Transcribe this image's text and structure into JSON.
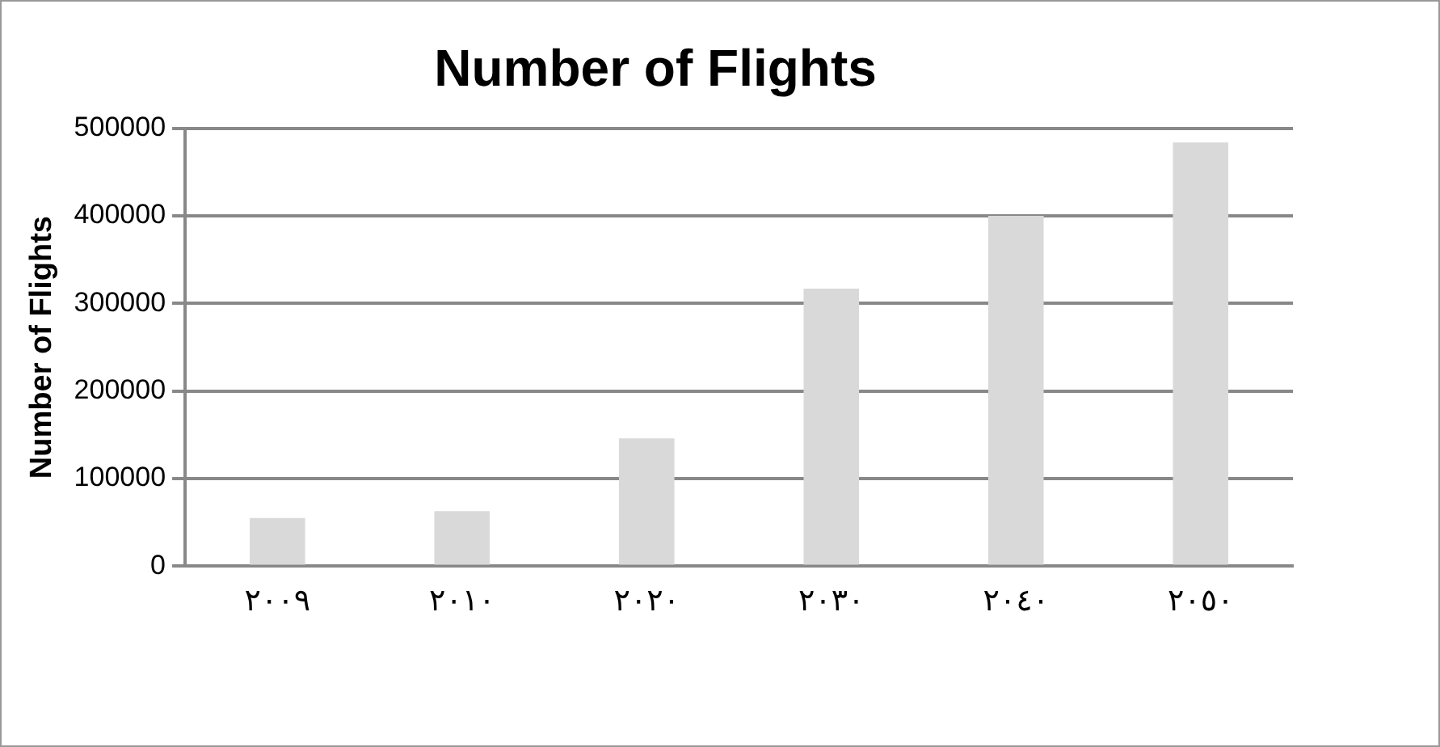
{
  "chart_data": {
    "type": "bar",
    "title": "Number of Flights",
    "ylabel": "Number of Flights",
    "categories": [
      "٢٠٠٩",
      "٢٠١٠",
      "٢٠٢٠",
      "٢٠٣٠",
      "٢٠٤٠",
      "٢٠٥٠"
    ],
    "values": [
      55000,
      63000,
      146000,
      317000,
      400000,
      484000
    ],
    "color": "#d9d9d9",
    "ylim": [
      0,
      500000
    ],
    "yticks": [
      0,
      100000,
      200000,
      300000,
      400000,
      500000
    ],
    "grid": "y",
    "legend": false
  }
}
